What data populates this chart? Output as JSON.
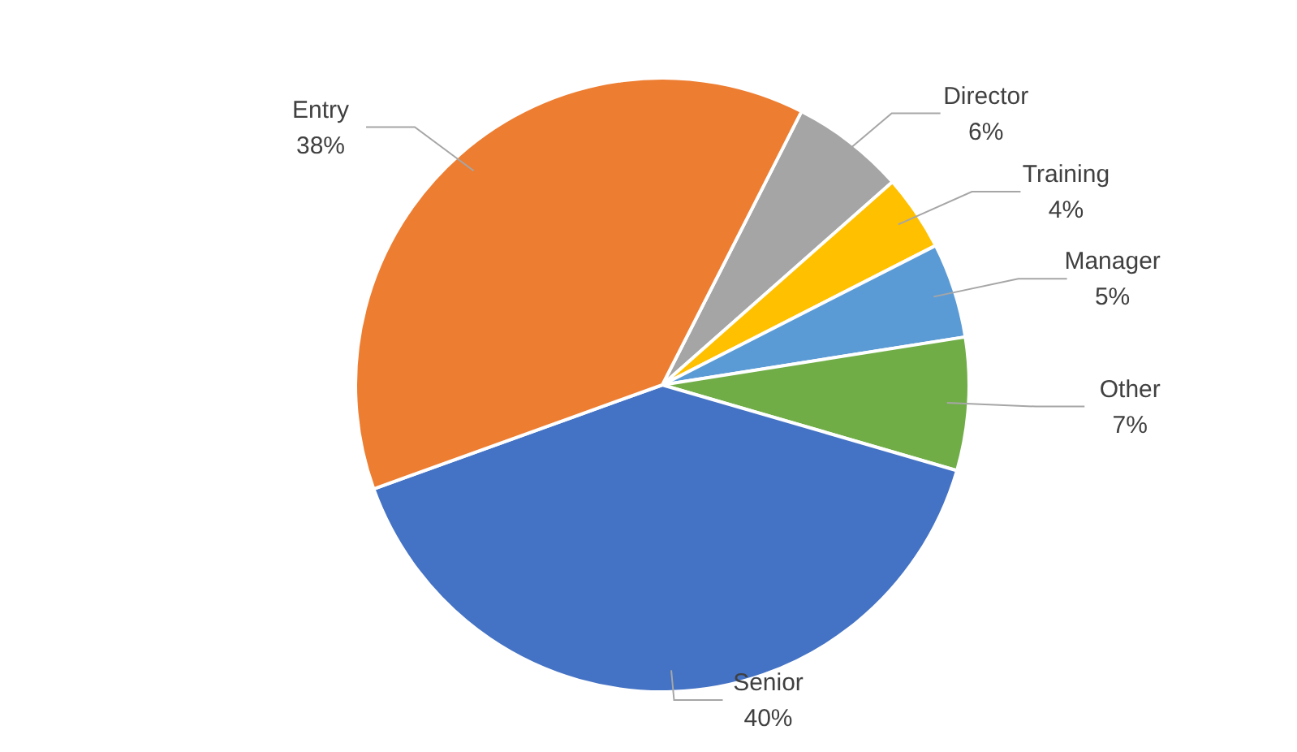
{
  "chart_data": {
    "type": "pie",
    "categories": [
      "Director",
      "Training",
      "Manager",
      "Other",
      "Senior",
      "Entry"
    ],
    "values": [
      6,
      4,
      5,
      7,
      40,
      38
    ],
    "value_labels": [
      "6%",
      "4%",
      "5%",
      "7%",
      "40%",
      "38%"
    ],
    "colors": [
      "#a5a5a5",
      "#ffc000",
      "#5b9bd5",
      "#70ad47",
      "#4472c4",
      "#ed7d31"
    ],
    "legend": false
  }
}
